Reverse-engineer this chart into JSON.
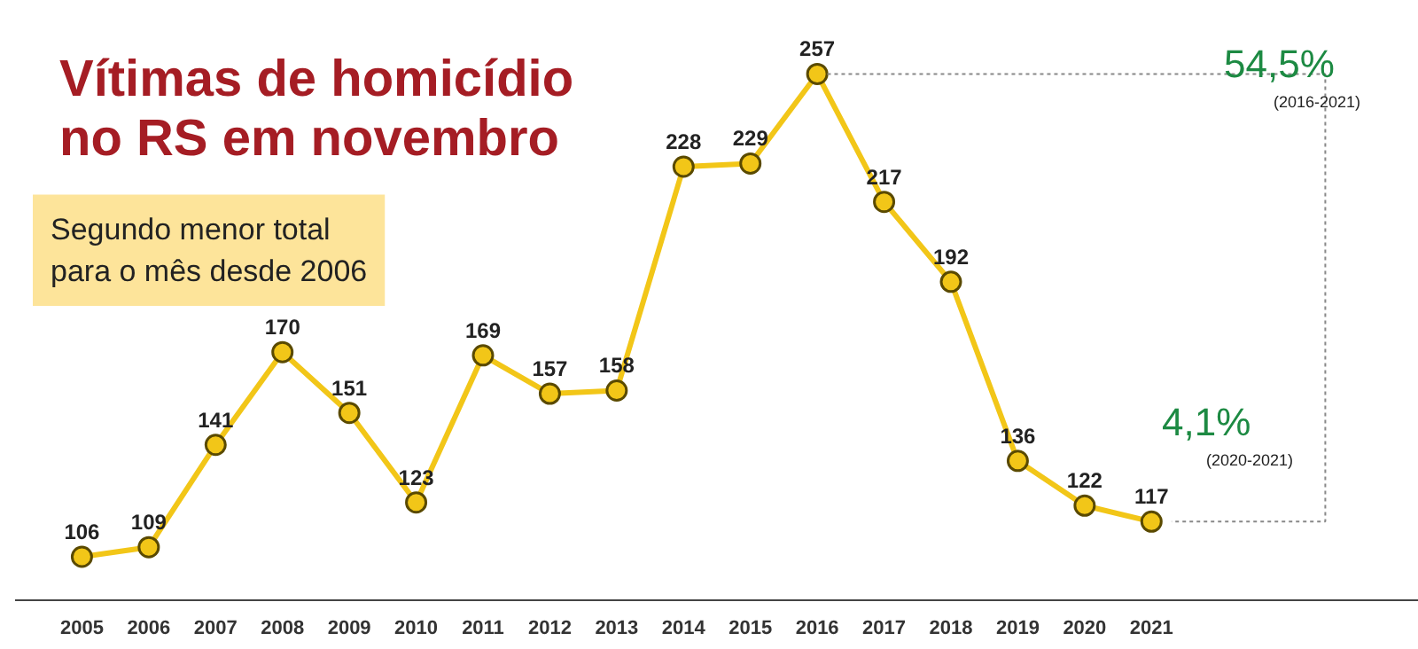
{
  "chart_data": {
    "type": "line",
    "title": "Vítimas de homicídio\nno RS em novembro",
    "subtitle": "Segundo menor total\npara o mês desde 2006",
    "categories": [
      "2005",
      "2006",
      "2007",
      "2008",
      "2009",
      "2010",
      "2011",
      "2012",
      "2013",
      "2014",
      "2015",
      "2016",
      "2017",
      "2018",
      "2019",
      "2020",
      "2021"
    ],
    "series": [
      {
        "color": "#f2c618",
        "values": [
          106,
          109,
          141,
          170,
          151,
          123,
          169,
          157,
          158,
          228,
          229,
          257,
          217,
          192,
          136,
          122,
          117
        ]
      }
    ],
    "data_labels": true,
    "marker": "circle",
    "line_style": "solid",
    "grid": false,
    "annotations": [
      "54,5%",
      "(2016-2021)",
      "4,1%",
      "(2020-2021)"
    ]
  }
}
